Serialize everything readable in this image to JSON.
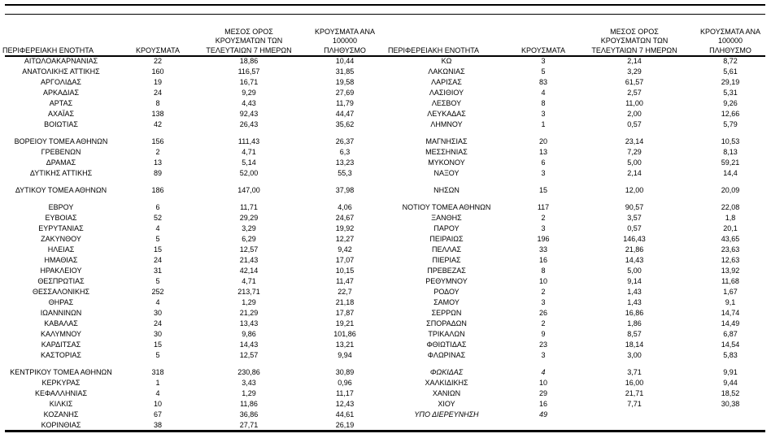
{
  "colors": {
    "background": "#ffffff",
    "text": "#000000",
    "rule": "#000000"
  },
  "header": {
    "region": "ΠΕΡΙΦΕΡΕΙΑΚΗ ΕΝΟΤΗΤΑ",
    "cases": "ΚΡΟΥΣΜΑΤΑ",
    "avg7_lines": [
      "ΜΕΣΟΣ ΟΡΟΣ",
      "ΚΡΟΥΣΜΑΤΩΝ ΤΩΝ",
      "ΤΕΛΕΥΤΑΙΩΝ 7 ΗΜΕΡΩΝ"
    ],
    "per100k_lines": [
      "ΚΡΟΥΣΜΑΤΑ ΑΝΑ 100000",
      "ΠΛΗΘΥΣΜΟ"
    ]
  },
  "left_rows": [
    {
      "name": "ΑΙΤΩΛΟΑΚΑΡΝΑΝΙΑΣ",
      "cases": "22",
      "avg7": "18,86",
      "per100k": "10,44"
    },
    {
      "name": "ΑΝΑΤΟΛΙΚΗΣ ΑΤΤΙΚΗΣ",
      "cases": "160",
      "avg7": "116,57",
      "per100k": "31,85"
    },
    {
      "name": "ΑΡΓΟΛΙΔΑΣ",
      "cases": "19",
      "avg7": "16,71",
      "per100k": "19,58"
    },
    {
      "name": "ΑΡΚΑΔΙΑΣ",
      "cases": "24",
      "avg7": "9,29",
      "per100k": "27,69"
    },
    {
      "name": "ΑΡΤΑΣ",
      "cases": "8",
      "avg7": "4,43",
      "per100k": "11,79"
    },
    {
      "name": "ΑΧΑΪΑΣ",
      "cases": "138",
      "avg7": "92,43",
      "per100k": "44,47"
    },
    {
      "name": "ΒΟΙΩΤΙΑΣ",
      "cases": "42",
      "avg7": "26,43",
      "per100k": "35,62"
    },
    null,
    {
      "name": "ΒΟΡΕΙΟΥ ΤΟΜΕΑ ΑΘΗΝΩΝ",
      "cases": "156",
      "avg7": "111,43",
      "per100k": "26,37"
    },
    {
      "name": "ΓΡΕΒΕΝΩΝ",
      "cases": "2",
      "avg7": "4,71",
      "per100k": "6,3"
    },
    {
      "name": "ΔΡΑΜΑΣ",
      "cases": "13",
      "avg7": "5,14",
      "per100k": "13,23"
    },
    {
      "name": "ΔΥΤΙΚΗΣ ΑΤΤΙΚΗΣ",
      "cases": "89",
      "avg7": "52,00",
      "per100k": "55,3"
    },
    null,
    {
      "name": "ΔΥΤΙΚΟΥ ΤΟΜΕΑ ΑΘΗΝΩΝ",
      "cases": "186",
      "avg7": "147,00",
      "per100k": "37,98"
    },
    null,
    {
      "name": "ΕΒΡΟΥ",
      "cases": "6",
      "avg7": "11,71",
      "per100k": "4,06"
    },
    {
      "name": "ΕΥΒΟΙΑΣ",
      "cases": "52",
      "avg7": "29,29",
      "per100k": "24,67"
    },
    {
      "name": "ΕΥΡΥΤΑΝΙΑΣ",
      "cases": "4",
      "avg7": "3,29",
      "per100k": "19,92"
    },
    {
      "name": "ΖΑΚΥΝΘΟΥ",
      "cases": "5",
      "avg7": "6,29",
      "per100k": "12,27"
    },
    {
      "name": "ΗΛΕΙΑΣ",
      "cases": "15",
      "avg7": "12,57",
      "per100k": "9,42"
    },
    {
      "name": "ΗΜΑΘΙΑΣ",
      "cases": "24",
      "avg7": "21,43",
      "per100k": "17,07"
    },
    {
      "name": "ΗΡΑΚΛΕΙΟΥ",
      "cases": "31",
      "avg7": "42,14",
      "per100k": "10,15"
    },
    {
      "name": "ΘΕΣΠΡΩΤΙΑΣ",
      "cases": "5",
      "avg7": "4,71",
      "per100k": "11,47"
    },
    {
      "name": "ΘΕΣΣΑΛΟΝΙΚΗΣ",
      "cases": "252",
      "avg7": "213,71",
      "per100k": "22,7"
    },
    {
      "name": "ΘΗΡΑΣ",
      "cases": "4",
      "avg7": "1,29",
      "per100k": "21,18"
    },
    {
      "name": "ΙΩΑΝΝΙΝΩΝ",
      "cases": "30",
      "avg7": "21,29",
      "per100k": "17,87"
    },
    {
      "name": "ΚΑΒΑΛΑΣ",
      "cases": "24",
      "avg7": "13,43",
      "per100k": "19,21"
    },
    {
      "name": "ΚΑΛΥΜΝΟΥ",
      "cases": "30",
      "avg7": "9,86",
      "per100k": "101,86"
    },
    {
      "name": "ΚΑΡΔΙΤΣΑΣ",
      "cases": "15",
      "avg7": "14,43",
      "per100k": "13,21"
    },
    {
      "name": "ΚΑΣΤΟΡΙΑΣ",
      "cases": "5",
      "avg7": "12,57",
      "per100k": "9,94"
    },
    null,
    {
      "name": "ΚΕΝΤΡΙΚΟΥ ΤΟΜΕΑ ΑΘΗΝΩΝ",
      "cases": "318",
      "avg7": "230,86",
      "per100k": "30,89"
    },
    {
      "name": "ΚΕΡΚΥΡΑΣ",
      "cases": "1",
      "avg7": "3,43",
      "per100k": "0,96"
    },
    {
      "name": "ΚΕΦΑΛΛΗΝΙΑΣ",
      "cases": "4",
      "avg7": "1,29",
      "per100k": "11,17"
    },
    {
      "name": "ΚΙΛΚΙΣ",
      "cases": "10",
      "avg7": "11,86",
      "per100k": "12,43"
    },
    {
      "name": "ΚΟΖΑΝΗΣ",
      "cases": "67",
      "avg7": "36,86",
      "per100k": "44,61"
    },
    {
      "name": "ΚΟΡΙΝΘΙΑΣ",
      "cases": "38",
      "avg7": "27,71",
      "per100k": "26,19"
    }
  ],
  "right_rows": [
    {
      "name": "ΚΩ",
      "cases": "3",
      "avg7": "2,14",
      "per100k": "8,72"
    },
    {
      "name": "ΛΑΚΩΝΙΑΣ",
      "cases": "5",
      "avg7": "3,29",
      "per100k": "5,61"
    },
    {
      "name": "ΛΑΡΙΣΑΣ",
      "cases": "83",
      "avg7": "61,57",
      "per100k": "29,19"
    },
    {
      "name": "ΛΑΣΙΘΙΟΥ",
      "cases": "4",
      "avg7": "2,57",
      "per100k": "5,31"
    },
    {
      "name": "ΛΕΣΒΟΥ",
      "cases": "8",
      "avg7": "11,00",
      "per100k": "9,26"
    },
    {
      "name": "ΛΕΥΚΑΔΑΣ",
      "cases": "3",
      "avg7": "2,00",
      "per100k": "12,66"
    },
    {
      "name": "ΛΗΜΝΟΥ",
      "cases": "1",
      "avg7": "0,57",
      "per100k": "5,79"
    },
    null,
    {
      "name": "ΜΑΓΝΗΣΙΑΣ",
      "cases": "20",
      "avg7": "23,14",
      "per100k": "10,53"
    },
    {
      "name": "ΜΕΣΣΗΝΙΑΣ",
      "cases": "13",
      "avg7": "7,29",
      "per100k": "8,13"
    },
    {
      "name": "ΜΥΚΟΝΟΥ",
      "cases": "6",
      "avg7": "5,00",
      "per100k": "59,21"
    },
    {
      "name": "ΝΑΞΟΥ",
      "cases": "3",
      "avg7": "2,14",
      "per100k": "14,4"
    },
    null,
    {
      "name": "ΝΗΣΩΝ",
      "cases": "15",
      "avg7": "12,00",
      "per100k": "20,09"
    },
    null,
    {
      "name": "ΝΟΤΙΟΥ ΤΟΜΕΑ ΑΘΗΝΩΝ",
      "cases": "117",
      "avg7": "90,57",
      "per100k": "22,08"
    },
    {
      "name": "ΞΑΝΘΗΣ",
      "cases": "2",
      "avg7": "3,57",
      "per100k": "1,8"
    },
    {
      "name": "ΠΑΡΟΥ",
      "cases": "3",
      "avg7": "0,57",
      "per100k": "20,1"
    },
    {
      "name": "ΠΕΙΡΑΙΩΣ",
      "cases": "196",
      "avg7": "146,43",
      "per100k": "43,65"
    },
    {
      "name": "ΠΕΛΛΑΣ",
      "cases": "33",
      "avg7": "21,86",
      "per100k": "23,63"
    },
    {
      "name": "ΠΙΕΡΙΑΣ",
      "cases": "16",
      "avg7": "14,43",
      "per100k": "12,63"
    },
    {
      "name": "ΠΡΕΒΕΖΑΣ",
      "cases": "8",
      "avg7": "5,00",
      "per100k": "13,92"
    },
    {
      "name": "ΡΕΘΥΜΝΟΥ",
      "cases": "10",
      "avg7": "9,14",
      "per100k": "11,68"
    },
    {
      "name": "ΡΟΔΟΥ",
      "cases": "2",
      "avg7": "1,43",
      "per100k": "1,67"
    },
    {
      "name": "ΣΑΜΟΥ",
      "cases": "3",
      "avg7": "1,43",
      "per100k": "9,1"
    },
    {
      "name": "ΣΕΡΡΩΝ",
      "cases": "26",
      "avg7": "16,86",
      "per100k": "14,74"
    },
    {
      "name": "ΣΠΟΡΑΔΩΝ",
      "cases": "2",
      "avg7": "1,86",
      "per100k": "14,49"
    },
    {
      "name": "ΤΡΙΚΑΛΩΝ",
      "cases": "9",
      "avg7": "8,57",
      "per100k": "6,87"
    },
    {
      "name": "ΦΘΙΩΤΙΔΑΣ",
      "cases": "23",
      "avg7": "18,14",
      "per100k": "14,54"
    },
    {
      "name": "ΦΛΩΡΙΝΑΣ",
      "cases": "3",
      "avg7": "3,00",
      "per100k": "5,83"
    },
    null,
    {
      "name": "ΦΩΚΙΔΑΣ",
      "cases": "4",
      "avg7": "3,71",
      "per100k": "9,91",
      "italic": true
    },
    {
      "name": "ΧΑΛΚΙΔΙΚΗΣ",
      "cases": "10",
      "avg7": "16,00",
      "per100k": "9,44"
    },
    {
      "name": "ΧΑΝΙΩΝ",
      "cases": "29",
      "avg7": "21,71",
      "per100k": "18,52"
    },
    {
      "name": "ΧΙΟΥ",
      "cases": "16",
      "avg7": "7,71",
      "per100k": "30,38"
    },
    {
      "name": "ΥΠΟ ΔΙΕΡΕΥΝΗΣΗ",
      "cases": "49",
      "avg7": "",
      "per100k": "",
      "italic": true
    }
  ]
}
